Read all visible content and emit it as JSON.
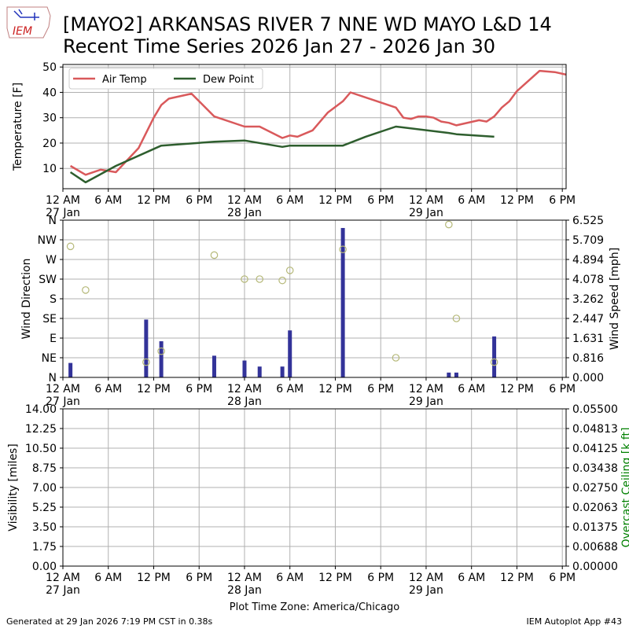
{
  "header": {
    "logo_text": "IEM",
    "title_line1": "[MAYO2] ARKANSAS RIVER 7 NNE WD MAYO L&D 14",
    "title_line2": "Recent Time Series 2026 Jan 27 - 2026 Jan 30"
  },
  "footer": {
    "generated": "Generated at 29 Jan 2026 7:19 PM CST in 0.38s",
    "app": "IEM Autoplot App #43"
  },
  "colors": {
    "air_temp": "#d9595b",
    "dew_point": "#2e5e2e",
    "wind_speed_bars": "#333399",
    "wind_dir_markers": "#b5b878",
    "ceiling_label": "#008000",
    "grid": "#b0b0b0"
  },
  "time_axis": {
    "ticks": [
      {
        "hours": 0,
        "label": "12 AM",
        "date": "27 Jan"
      },
      {
        "hours": 6,
        "label": "6 AM"
      },
      {
        "hours": 12,
        "label": "12 PM"
      },
      {
        "hours": 18,
        "label": "6 PM"
      },
      {
        "hours": 24,
        "label": "12 AM",
        "date": "28 Jan"
      },
      {
        "hours": 30,
        "label": "6 AM"
      },
      {
        "hours": 36,
        "label": "12 PM"
      },
      {
        "hours": 42,
        "label": "6 PM"
      },
      {
        "hours": 48,
        "label": "12 AM",
        "date": "29 Jan"
      },
      {
        "hours": 54,
        "label": "6 AM"
      },
      {
        "hours": 60,
        "label": "12 PM"
      },
      {
        "hours": 66,
        "label": "6 PM"
      }
    ],
    "xlabel": "Plot Time Zone: America/Chicago"
  },
  "chart_data": [
    {
      "type": "line",
      "ylabel": "Temperature [F]",
      "ylim": [
        2,
        51
      ],
      "yticks": [
        10,
        20,
        30,
        40,
        50
      ],
      "xlim_hours": [
        0,
        66.5
      ],
      "grid": true,
      "legend": "top-left",
      "series": [
        {
          "name": "Air Temp",
          "points": [
            [
              1,
              11
            ],
            [
              3,
              7.5
            ],
            [
              5,
              9.5
            ],
            [
              6,
              9
            ],
            [
              7,
              8.5
            ],
            [
              10,
              18
            ],
            [
              12,
              30
            ],
            [
              13,
              35
            ],
            [
              14,
              37.5
            ],
            [
              17,
              39.5
            ],
            [
              20,
              30.5
            ],
            [
              24,
              26.5
            ],
            [
              26,
              26.5
            ],
            [
              29,
              22
            ],
            [
              30,
              23
            ],
            [
              31,
              22.5
            ],
            [
              33,
              25
            ],
            [
              35,
              32
            ],
            [
              37,
              36.5
            ],
            [
              38,
              40
            ],
            [
              40,
              38
            ],
            [
              44,
              34
            ],
            [
              45,
              30
            ],
            [
              46,
              29.5
            ],
            [
              47,
              30.5
            ],
            [
              48,
              30.5
            ],
            [
              49,
              30
            ],
            [
              50,
              28.5
            ],
            [
              51,
              28
            ],
            [
              52,
              27
            ],
            [
              55,
              29
            ],
            [
              56,
              28.5
            ],
            [
              57,
              30.5
            ],
            [
              58,
              34
            ],
            [
              59,
              36.5
            ],
            [
              60,
              40.5
            ],
            [
              63,
              48.5
            ],
            [
              65,
              48
            ],
            [
              66.5,
              47
            ]
          ]
        },
        {
          "name": "Dew Point",
          "points": [
            [
              1,
              8.5
            ],
            [
              3,
              4.5
            ],
            [
              7,
              11
            ],
            [
              13,
              19
            ],
            [
              20,
              20.5
            ],
            [
              24,
              21
            ],
            [
              29,
              18.5
            ],
            [
              30,
              19
            ],
            [
              37,
              19
            ],
            [
              40,
              22.5
            ],
            [
              44,
              26.5
            ],
            [
              51,
              24
            ],
            [
              52,
              23.5
            ],
            [
              57,
              22.5
            ]
          ]
        }
      ]
    },
    {
      "type": "bar",
      "ylabel": "Wind Direction",
      "y2label": "Wind Speed [mph]",
      "direction_ticks": [
        "N",
        "NE",
        "E",
        "SE",
        "S",
        "SW",
        "W",
        "NW",
        "N"
      ],
      "ylim_deg": [
        0,
        360
      ],
      "speed_ticks": [
        "0.000",
        "0.816",
        "1.631",
        "2.447",
        "3.262",
        "4.078",
        "4.894",
        "5.709",
        "6.525"
      ],
      "ylim_speed": [
        0,
        6.525
      ],
      "grid": true,
      "speeds": [
        [
          1,
          0.6
        ],
        [
          11,
          2.4
        ],
        [
          13,
          1.5
        ],
        [
          20,
          0.9
        ],
        [
          24,
          0.7
        ],
        [
          26,
          0.45
        ],
        [
          29,
          0.45
        ],
        [
          30,
          1.95
        ],
        [
          37,
          6.2
        ],
        [
          51,
          0.2
        ],
        [
          52,
          0.2
        ],
        [
          57,
          1.7
        ]
      ],
      "directions": [
        [
          1,
          300
        ],
        [
          3,
          200
        ],
        [
          11,
          35
        ],
        [
          13,
          60
        ],
        [
          20,
          280
        ],
        [
          24,
          225
        ],
        [
          26,
          225
        ],
        [
          29,
          222
        ],
        [
          30,
          245
        ],
        [
          37,
          293
        ],
        [
          44,
          45
        ],
        [
          51,
          350
        ],
        [
          52,
          135
        ],
        [
          57,
          35
        ]
      ]
    },
    {
      "type": "line",
      "ylabel": "Visibility [miles]",
      "y2label": "Overcast Ceiling [k ft]",
      "ylim": [
        0,
        14
      ],
      "yticks": [
        "0.00",
        "1.75",
        "3.50",
        "5.25",
        "7.00",
        "8.75",
        "10.50",
        "12.25",
        "14.00"
      ],
      "y2lim": [
        0,
        0.055
      ],
      "y2ticks": [
        "0.00000",
        "0.00688",
        "0.01375",
        "0.02063",
        "0.02750",
        "0.03438",
        "0.04125",
        "0.04813",
        "0.05500"
      ],
      "grid": true,
      "series": []
    }
  ]
}
